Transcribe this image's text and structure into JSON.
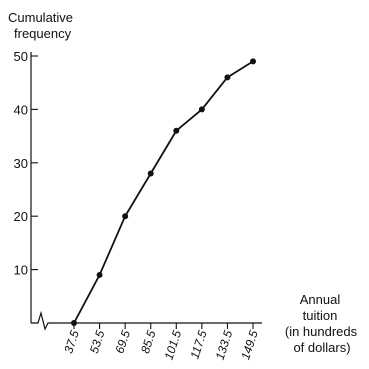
{
  "chart_data": {
    "type": "line",
    "title": "",
    "ylabel_lines": [
      "Cumulative",
      "frequency"
    ],
    "xlabel_lines": [
      "Annual",
      "tuition",
      "(in hundreds",
      "of dollars)"
    ],
    "x": [
      37.5,
      53.5,
      69.5,
      85.5,
      101.5,
      117.5,
      133.5,
      149.5
    ],
    "x_tick_labels": [
      "37.5",
      "53.5",
      "69.5",
      "85.5",
      "101.5",
      "117.5",
      "133.5",
      "149.5"
    ],
    "y": [
      0,
      9,
      20,
      28,
      36,
      40,
      46,
      49
    ],
    "ylim": [
      0,
      50
    ],
    "y_ticks": [
      10,
      20,
      30,
      40,
      50
    ],
    "axis_break": true,
    "grid": false,
    "legend": "none",
    "color": "#111111"
  }
}
